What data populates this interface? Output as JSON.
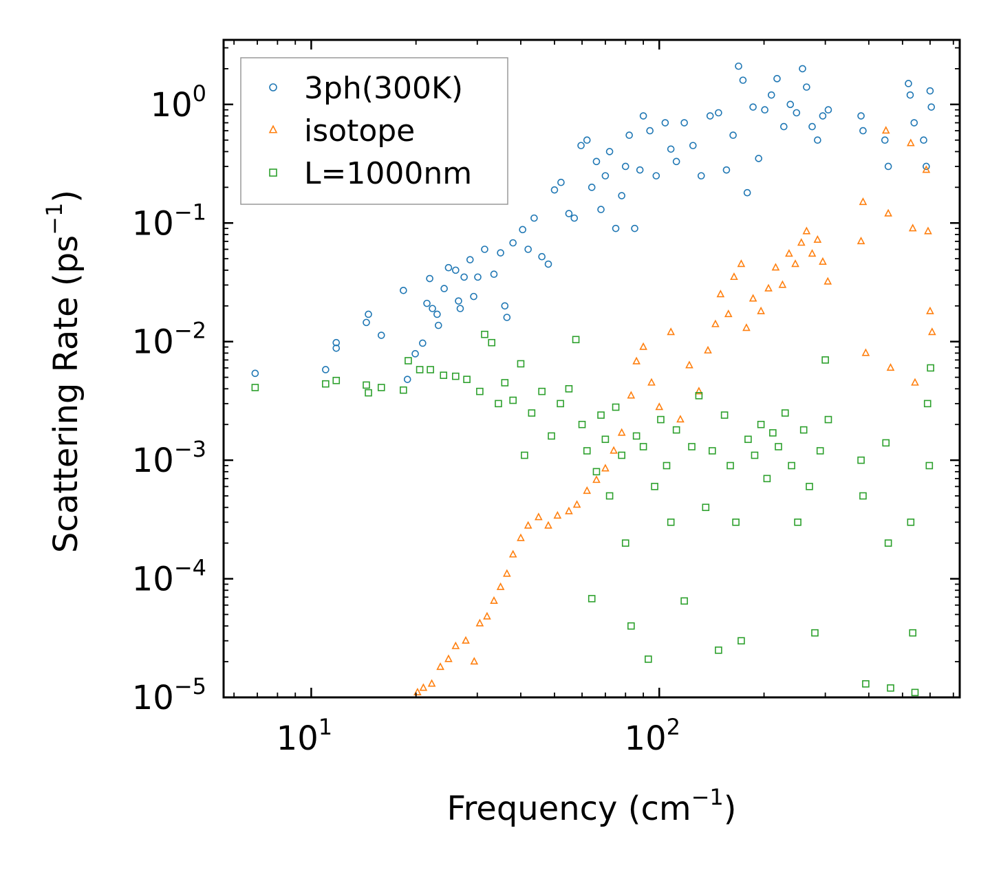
{
  "chart_data": {
    "type": "scatter",
    "title": "",
    "xlabel": "Frequency (cm",
    "xlabel_sup": "−1",
    "xlabel_end": ")",
    "ylabel": "Scattering Rate (ps",
    "ylabel_sup": "−1",
    "ylabel_end": ")",
    "xscale": "log",
    "yscale": "log",
    "xlim": [
      5.6,
      730
    ],
    "ylim": [
      1e-05,
      3.5
    ],
    "x_ticks": [
      {
        "value": 10,
        "base": "10",
        "exp": "1"
      },
      {
        "value": 100,
        "base": "10",
        "exp": "2"
      }
    ],
    "y_ticks": [
      {
        "value": 1,
        "base": "10",
        "exp": "0"
      },
      {
        "value": 0.1,
        "base": "10",
        "exp": "−1"
      },
      {
        "value": 0.01,
        "base": "10",
        "exp": "−2"
      },
      {
        "value": 0.001,
        "base": "10",
        "exp": "−3"
      },
      {
        "value": 0.0001,
        "base": "10",
        "exp": "−4"
      },
      {
        "value": 1e-05,
        "base": "10",
        "exp": "−5"
      }
    ],
    "legend_position": "top-left",
    "series": [
      {
        "name": "3ph(300K)",
        "marker": "circle",
        "color": "#1f77b4",
        "points": [
          [
            6.9,
            0.0054
          ],
          [
            11.0,
            0.0058
          ],
          [
            11.8,
            0.0098
          ],
          [
            11.8,
            0.0088
          ],
          [
            14.4,
            0.0145
          ],
          [
            14.6,
            0.017
          ],
          [
            15.9,
            0.0113
          ],
          [
            18.4,
            0.027
          ],
          [
            18.9,
            0.0048
          ],
          [
            19.9,
            0.0079
          ],
          [
            20.9,
            0.0097
          ],
          [
            21.5,
            0.021
          ],
          [
            21.9,
            0.034
          ],
          [
            22.3,
            0.019
          ],
          [
            23.0,
            0.017
          ],
          [
            23.2,
            0.0137
          ],
          [
            24.1,
            0.028
          ],
          [
            24.8,
            0.042
          ],
          [
            26.0,
            0.04
          ],
          [
            26.5,
            0.022
          ],
          [
            26.8,
            0.019
          ],
          [
            27.5,
            0.035
          ],
          [
            28.6,
            0.049
          ],
          [
            29.3,
            0.024
          ],
          [
            30.1,
            0.035
          ],
          [
            31.5,
            0.06
          ],
          [
            33.5,
            0.037
          ],
          [
            35.0,
            0.056
          ],
          [
            36.0,
            0.02
          ],
          [
            36.5,
            0.016
          ],
          [
            38.0,
            0.068
          ],
          [
            40.5,
            0.088
          ],
          [
            42.0,
            0.06
          ],
          [
            43.7,
            0.11
          ],
          [
            46.0,
            0.052
          ],
          [
            48.0,
            0.045
          ],
          [
            50.0,
            0.19
          ],
          [
            52.2,
            0.22
          ],
          [
            55.0,
            0.12
          ],
          [
            57.0,
            0.11
          ],
          [
            59.6,
            0.45
          ],
          [
            62.0,
            0.5
          ],
          [
            64.0,
            0.2
          ],
          [
            66.0,
            0.33
          ],
          [
            68.0,
            0.13
          ],
          [
            70.0,
            0.25
          ],
          [
            72.0,
            0.4
          ],
          [
            75.0,
            0.09
          ],
          [
            78.0,
            0.17
          ],
          [
            80.0,
            0.3
          ],
          [
            82.0,
            0.55
          ],
          [
            85.0,
            0.09
          ],
          [
            88.0,
            0.28
          ],
          [
            90.0,
            0.8
          ],
          [
            94.0,
            0.6
          ],
          [
            98.0,
            0.25
          ],
          [
            104.0,
            0.7
          ],
          [
            108.0,
            0.42
          ],
          [
            112.0,
            0.33
          ],
          [
            118.0,
            0.7
          ],
          [
            125.0,
            0.45
          ],
          [
            132.0,
            0.25
          ],
          [
            140.0,
            0.8
          ],
          [
            148.0,
            0.85
          ],
          [
            156.0,
            0.28
          ],
          [
            163.0,
            0.55
          ],
          [
            169.0,
            2.1
          ],
          [
            174.0,
            1.6
          ],
          [
            179.0,
            0.18
          ],
          [
            186.0,
            0.95
          ],
          [
            193.0,
            0.35
          ],
          [
            201.0,
            0.9
          ],
          [
            210.0,
            1.2
          ],
          [
            218.0,
            1.65
          ],
          [
            228.0,
            0.65
          ],
          [
            238.0,
            1.0
          ],
          [
            248.0,
            0.85
          ],
          [
            258.0,
            2.0
          ],
          [
            265.0,
            1.4
          ],
          [
            275.0,
            0.65
          ],
          [
            285.0,
            0.5
          ],
          [
            295.0,
            0.8
          ],
          [
            306.0,
            0.9
          ],
          [
            380.0,
            0.8
          ],
          [
            385.0,
            0.6
          ],
          [
            445.0,
            0.5
          ],
          [
            455.0,
            0.3
          ],
          [
            520.0,
            1.5
          ],
          [
            526.0,
            1.2
          ],
          [
            540.0,
            0.7
          ],
          [
            575.0,
            0.5
          ],
          [
            585.0,
            0.3
          ],
          [
            600.0,
            1.3
          ],
          [
            605.0,
            0.95
          ]
        ]
      },
      {
        "name": "isotope",
        "marker": "triangle",
        "color": "#ff7f0e",
        "points": [
          [
            20.2,
            1.1e-05
          ],
          [
            21.0,
            1.2e-05
          ],
          [
            22.2,
            1.3e-05
          ],
          [
            23.5,
            1.8e-05
          ],
          [
            24.8,
            2.1e-05
          ],
          [
            26.0,
            2.7e-05
          ],
          [
            27.8,
            3e-05
          ],
          [
            29.4,
            2e-05
          ],
          [
            30.5,
            4.2e-05
          ],
          [
            32.0,
            4.8e-05
          ],
          [
            33.5,
            6.5e-05
          ],
          [
            35.0,
            8.5e-05
          ],
          [
            36.5,
            0.00011
          ],
          [
            38.0,
            0.00016
          ],
          [
            40.0,
            0.00022
          ],
          [
            42.0,
            0.00028
          ],
          [
            45.0,
            0.00033
          ],
          [
            48.0,
            0.00028
          ],
          [
            51.0,
            0.00034
          ],
          [
            55.0,
            0.00037
          ],
          [
            58.0,
            0.00042
          ],
          [
            62.0,
            0.00055
          ],
          [
            66.0,
            0.00068
          ],
          [
            70.0,
            0.00085
          ],
          [
            74.0,
            0.0012
          ],
          [
            78.0,
            0.0017
          ],
          [
            83.0,
            0.0035
          ],
          [
            86.0,
            0.0068
          ],
          [
            90.0,
            0.009
          ],
          [
            95.0,
            0.0045
          ],
          [
            100.0,
            0.0028
          ],
          [
            108.0,
            0.012
          ],
          [
            115.0,
            0.0022
          ],
          [
            122.0,
            0.0063
          ],
          [
            130.0,
            0.0038
          ],
          [
            138.0,
            0.0084
          ],
          [
            145.0,
            0.014
          ],
          [
            150.0,
            0.025
          ],
          [
            158.0,
            0.017
          ],
          [
            164.0,
            0.035
          ],
          [
            172.0,
            0.045
          ],
          [
            178.0,
            0.013
          ],
          [
            186.0,
            0.023
          ],
          [
            196.0,
            0.018
          ],
          [
            206.0,
            0.028
          ],
          [
            216.0,
            0.042
          ],
          [
            226.0,
            0.03
          ],
          [
            236.0,
            0.055
          ],
          [
            246.0,
            0.045
          ],
          [
            256.0,
            0.068
          ],
          [
            265.0,
            0.085
          ],
          [
            275.0,
            0.055
          ],
          [
            285.0,
            0.072
          ],
          [
            295.0,
            0.047
          ],
          [
            305.0,
            0.032
          ],
          [
            380.0,
            0.07
          ],
          [
            385.0,
            0.15
          ],
          [
            392.0,
            0.008
          ],
          [
            448.0,
            0.6
          ],
          [
            455.0,
            0.12
          ],
          [
            462.0,
            0.006
          ],
          [
            528.0,
            0.47
          ],
          [
            535.0,
            0.09
          ],
          [
            543.0,
            0.0045
          ],
          [
            585.0,
            0.28
          ],
          [
            592.0,
            0.085
          ],
          [
            600.0,
            0.018
          ],
          [
            608.0,
            0.012
          ]
        ]
      },
      {
        "name": "L=1000nm",
        "marker": "square",
        "color": "#2ca02c",
        "points": [
          [
            6.9,
            0.0041
          ],
          [
            11.0,
            0.0044
          ],
          [
            11.8,
            0.0047
          ],
          [
            14.4,
            0.0043
          ],
          [
            14.6,
            0.0037
          ],
          [
            15.9,
            0.0041
          ],
          [
            18.4,
            0.0039
          ],
          [
            19.0,
            0.0069
          ],
          [
            20.5,
            0.0058
          ],
          [
            22.0,
            0.0058
          ],
          [
            24.0,
            0.0052
          ],
          [
            26.0,
            0.0051
          ],
          [
            28.0,
            0.0048
          ],
          [
            30.5,
            0.0038
          ],
          [
            31.5,
            0.0115
          ],
          [
            33.0,
            0.0098
          ],
          [
            34.5,
            0.003
          ],
          [
            36.0,
            0.0045
          ],
          [
            38.0,
            0.0032
          ],
          [
            40.0,
            0.0065
          ],
          [
            41.0,
            0.0011
          ],
          [
            43.0,
            0.0025
          ],
          [
            46.0,
            0.0038
          ],
          [
            49.0,
            0.0016
          ],
          [
            52.0,
            0.003
          ],
          [
            55.0,
            0.004
          ],
          [
            57.6,
            0.0104
          ],
          [
            60.0,
            0.002
          ],
          [
            62.0,
            0.0012
          ],
          [
            64.0,
            6.8e-05
          ],
          [
            66.0,
            0.0008
          ],
          [
            68.0,
            0.0024
          ],
          [
            70.0,
            0.0015
          ],
          [
            72.0,
            0.0005
          ],
          [
            75.0,
            0.0028
          ],
          [
            78.0,
            0.0011
          ],
          [
            80.0,
            0.0002
          ],
          [
            83.0,
            4e-05
          ],
          [
            86.0,
            0.0016
          ],
          [
            90.0,
            0.0013
          ],
          [
            93.0,
            2.1e-05
          ],
          [
            97.0,
            0.0006
          ],
          [
            101.0,
            0.0022
          ],
          [
            105.0,
            0.0009
          ],
          [
            108.0,
            0.0003
          ],
          [
            112.0,
            0.0018
          ],
          [
            118.0,
            6.5e-05
          ],
          [
            124.0,
            0.0013
          ],
          [
            130.0,
            0.0035
          ],
          [
            136.0,
            0.0004
          ],
          [
            142.0,
            0.0012
          ],
          [
            148.0,
            2.5e-05
          ],
          [
            154.0,
            0.0024
          ],
          [
            160.0,
            0.0009
          ],
          [
            166.0,
            0.0003
          ],
          [
            172.0,
            3e-05
          ],
          [
            180.0,
            0.0015
          ],
          [
            188.0,
            0.0011
          ],
          [
            196.0,
            0.002
          ],
          [
            204.0,
            0.0007
          ],
          [
            212.0,
            0.0017
          ],
          [
            220.0,
            0.0013
          ],
          [
            230.0,
            0.0025
          ],
          [
            240.0,
            0.0009
          ],
          [
            250.0,
            0.0003
          ],
          [
            260.0,
            0.0018
          ],
          [
            270.0,
            0.0006
          ],
          [
            280.0,
            3.5e-05
          ],
          [
            290.0,
            0.0012
          ],
          [
            300.0,
            0.007
          ],
          [
            306.0,
            0.0022
          ],
          [
            380.0,
            0.001
          ],
          [
            385.0,
            0.0005
          ],
          [
            392.0,
            1.3e-05
          ],
          [
            448.0,
            0.0014
          ],
          [
            455.0,
            0.0002
          ],
          [
            462.0,
            1.2e-05
          ],
          [
            528.0,
            0.0003
          ],
          [
            535.0,
            3.5e-05
          ],
          [
            543.0,
            1.1e-05
          ],
          [
            590.0,
            0.003
          ],
          [
            597.0,
            0.0009
          ],
          [
            602.0,
            0.006
          ]
        ]
      }
    ]
  }
}
